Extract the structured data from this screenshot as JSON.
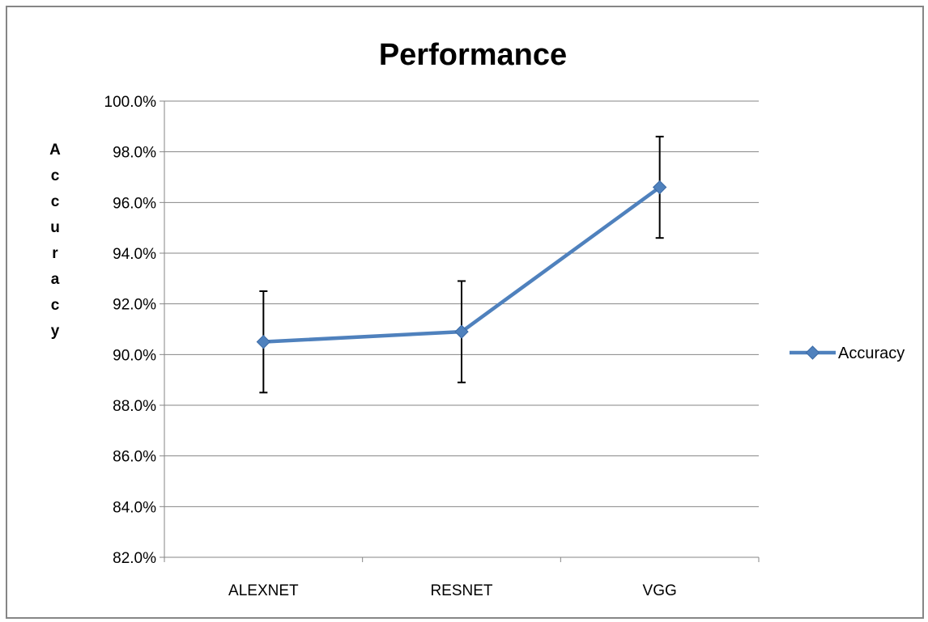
{
  "chart_data": {
    "type": "line",
    "title": "Performance",
    "xlabel": "",
    "ylabel": "Accuracy",
    "categories": [
      "ALEXNET",
      "RESNET",
      "VGG"
    ],
    "series": [
      {
        "name": "Accuracy",
        "values": [
          0.905,
          0.909,
          0.966
        ],
        "error": [
          0.02,
          0.02,
          0.02
        ],
        "color": "#4f81bd"
      }
    ],
    "ylim": [
      0.82,
      1.0
    ],
    "ytick_step": 0.02,
    "ytick_labels": [
      "82.0%",
      "84.0%",
      "86.0%",
      "88.0%",
      "90.0%",
      "92.0%",
      "94.0%",
      "96.0%",
      "98.0%",
      "100.0%"
    ],
    "grid": true,
    "legend_position": "right",
    "colors": {
      "gridline": "#868686",
      "axis": "#868686",
      "error_bar": "#000000"
    }
  }
}
